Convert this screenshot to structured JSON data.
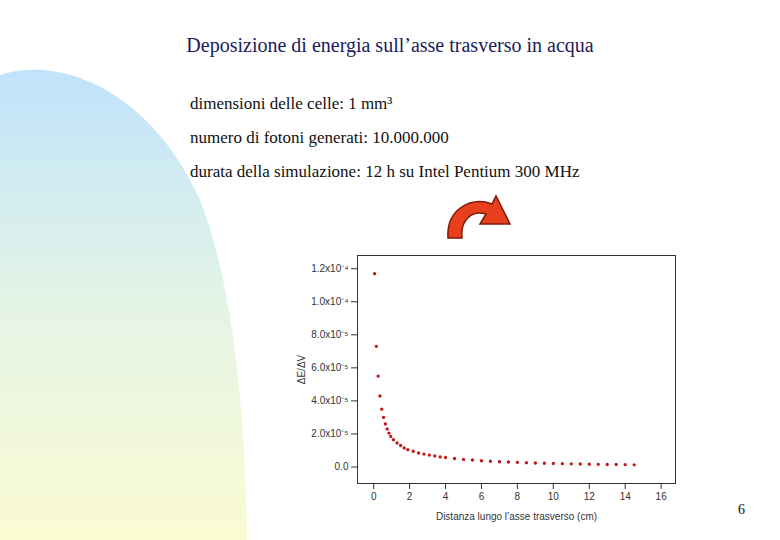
{
  "chart_data": {
    "type": "scatter",
    "title": "Deposizione di energia sull’asse trasverso in acqua",
    "x_label": "Distanza lungo l’asse trasverso (cm)",
    "y_label": "ΔE/ΔV",
    "color": "#c01a1a",
    "marker": "circle",
    "x": [
      0.05,
      0.15,
      0.25,
      0.35,
      0.45,
      0.55,
      0.65,
      0.75,
      0.85,
      0.95,
      1.1,
      1.3,
      1.5,
      1.7,
      1.9,
      2.2,
      2.5,
      2.8,
      3.1,
      3.4,
      3.7,
      4.0,
      4.5,
      5.0,
      5.5,
      6.0,
      6.5,
      7.0,
      7.5,
      8.0,
      8.5,
      9.0,
      9.5,
      10.0,
      10.5,
      11.0,
      11.5,
      12.0,
      12.5,
      13.0,
      13.5,
      14.0,
      14.5
    ],
    "values": [
      0.000117,
      7.3e-05,
      5.5e-05,
      4.3e-05,
      3.5e-05,
      3e-05,
      2.6e-05,
      2.3e-05,
      2.05e-05,
      1.85e-05,
      1.65e-05,
      1.45e-05,
      1.3e-05,
      1.15e-05,
      1.05e-05,
      9.5e-06,
      8.5e-06,
      7.8e-06,
      7.2e-06,
      6.6e-06,
      6.1e-06,
      5.7e-06,
      5.1e-06,
      4.6e-06,
      4.2e-06,
      3.8e-06,
      3.5e-06,
      3.2e-06,
      3e-06,
      2.8e-06,
      2.6e-06,
      2.4e-06,
      2.3e-06,
      2.1e-06,
      2e-06,
      1.9e-06,
      1.8e-06,
      1.7e-06,
      1.6e-06,
      1.5e-06,
      1.5e-06,
      1.4e-06,
      1.3e-06
    ],
    "xlim": [
      -0.9,
      16.8
    ],
    "xticks": [
      0,
      2,
      4,
      6,
      8,
      10,
      12,
      14,
      16
    ],
    "ylim": [
      -1e-05,
      0.000128
    ],
    "yticks": [
      {
        "value": 0,
        "label": "0.0"
      },
      {
        "value": 2e-05,
        "label": "2.0x10⁻⁵"
      },
      {
        "value": 4e-05,
        "label": "4.0x10⁻⁵"
      },
      {
        "value": 6e-05,
        "label": "6.0x10⁻⁵"
      },
      {
        "value": 8e-05,
        "label": "8.0x10⁻⁵"
      },
      {
        "value": 0.0001,
        "label": "1.0x10⁻⁴"
      },
      {
        "value": 0.00012,
        "label": "1.2x10⁻⁴"
      }
    ],
    "grid": false
  },
  "slide": {
    "lines": [
      "dimensioni delle celle: 1 mm³",
      "numero di fotoni generati: 10.000.000",
      "durata della simulazione: 12 h su Intel Pentium 300 MHz"
    ],
    "page": 6
  }
}
